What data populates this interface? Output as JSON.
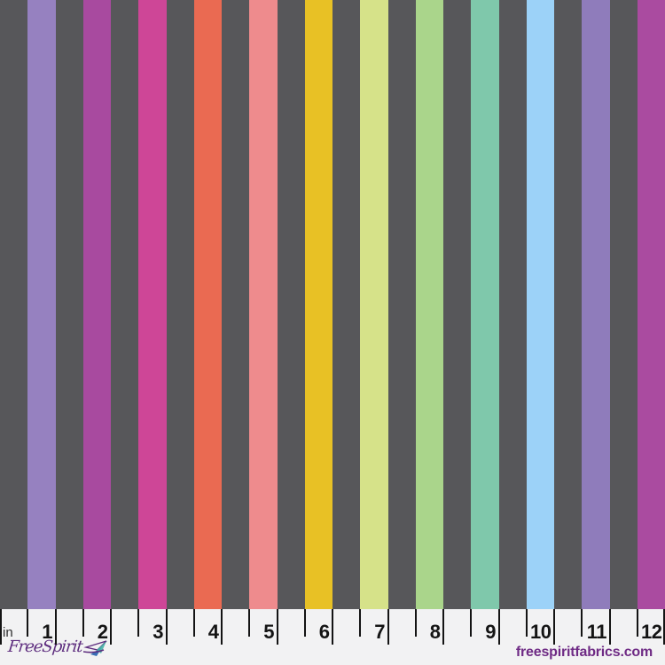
{
  "fabric": {
    "background_color": "#57575a",
    "stripe_colors": [
      "#9681c0",
      "#a84a9f",
      "#ce4697",
      "#ea6a52",
      "#ee8b8d",
      "#e8c125",
      "#d6e289",
      "#aad58b",
      "#7fc8ab",
      "#9cd2f8",
      "#8f7cbb",
      "#aa4ba0"
    ]
  },
  "ruler": {
    "unit_label": "in",
    "numbers": [
      "1",
      "2",
      "3",
      "4",
      "5",
      "6",
      "7",
      "8",
      "9",
      "10",
      "11",
      "12"
    ],
    "background_color": "#f2f2f3",
    "tick_color": "#141414",
    "number_color": "#141414",
    "unit_color": "#2e2e2e"
  },
  "branding": {
    "logo_text": "FreeSpirit",
    "logo_color": "#5d2c7e",
    "plane_blue": "#3a6eb5",
    "plane_teal": "#45b0a6",
    "website": "freespiritfabrics.com",
    "website_color": "#6f2b85"
  }
}
